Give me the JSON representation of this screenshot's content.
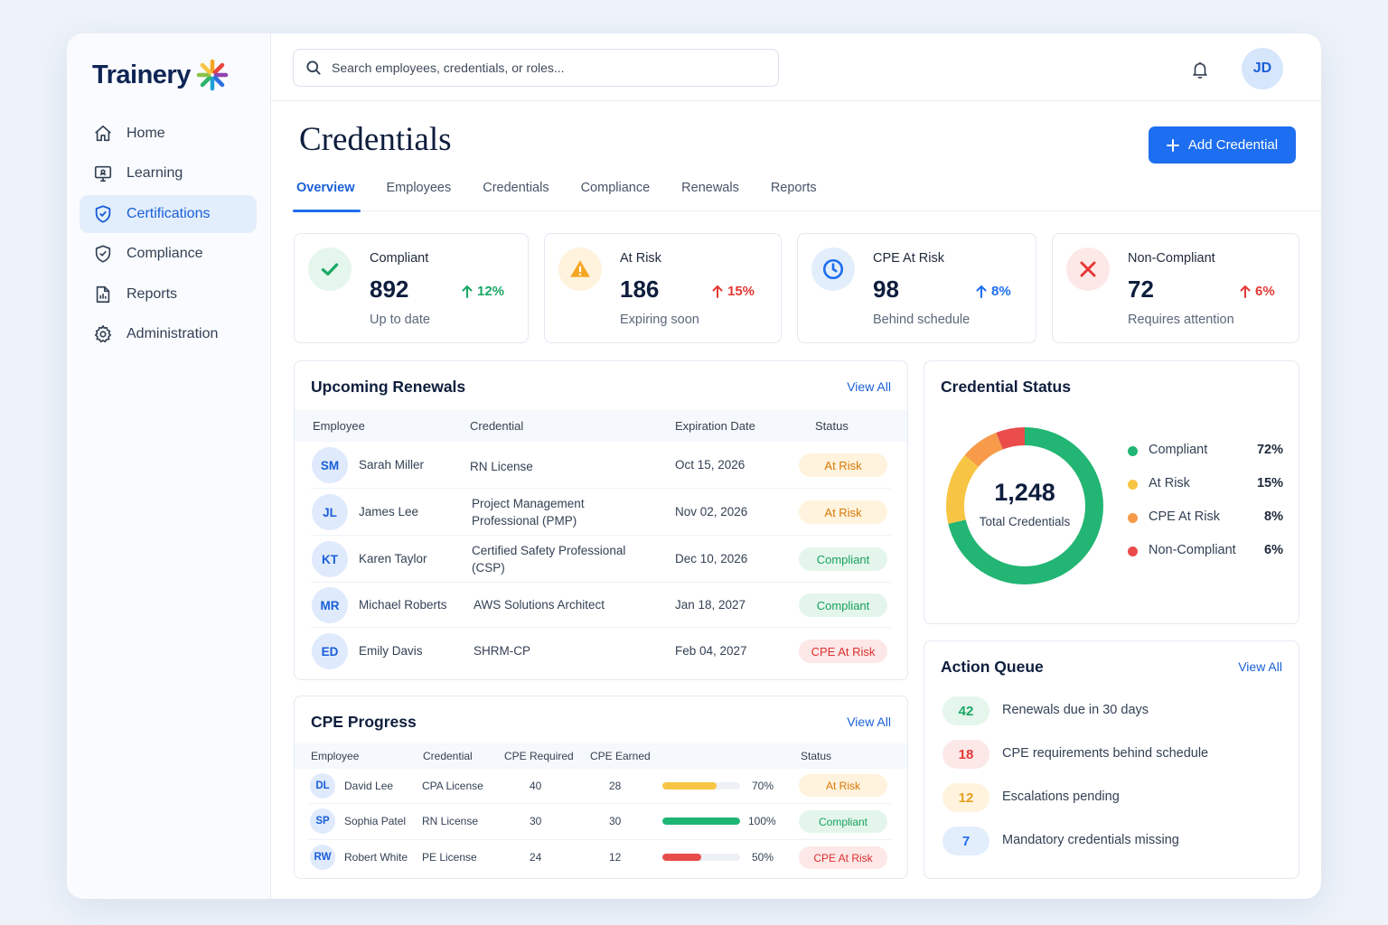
{
  "app": {
    "logo_text": "Trainery"
  },
  "sidebar": {
    "items": [
      {
        "label": "Home",
        "icon": "home-icon",
        "active": false
      },
      {
        "label": "Learning",
        "icon": "monitor-icon",
        "active": false
      },
      {
        "label": "Certifications",
        "icon": "shield-check-icon",
        "active": true
      },
      {
        "label": "Compliance",
        "icon": "shield-icon",
        "active": false
      },
      {
        "label": "Reports",
        "icon": "report-icon",
        "active": false
      },
      {
        "label": "Administration",
        "icon": "gear-icon",
        "active": false
      }
    ]
  },
  "topbar": {
    "search_placeholder": "Search employees, credentials, or roles...",
    "avatar_initials": "JD"
  },
  "header": {
    "title": "Credentials",
    "add_button": "Add Credential"
  },
  "tabs": [
    "Overview",
    "Employees",
    "Credentials",
    "Compliance",
    "Renewals",
    "Reports"
  ],
  "active_tab": "Overview",
  "kpis": [
    {
      "label": "Compliant",
      "value": "892",
      "trend": "12%",
      "sub": "Up to date",
      "color": "#1aa866",
      "bg": "#e5f6ec",
      "icon": "check-icon"
    },
    {
      "label": "At Risk",
      "value": "186",
      "trend": "15%",
      "sub": "Expiring soon",
      "color": "#f5a623",
      "bg": "#fff3de",
      "icon": "warning-icon"
    },
    {
      "label": "CPE At Risk",
      "value": "98",
      "trend": "8%",
      "sub": "Behind schedule",
      "color": "#1d6ef0",
      "bg": "#e3eefc",
      "icon": "clock-icon"
    },
    {
      "label": "Non-Compliant",
      "value": "72",
      "trend": "6%",
      "sub": "Requires attention",
      "color": "#e53935",
      "bg": "#fde8e8",
      "icon": "x-icon"
    }
  ],
  "renewals": {
    "title": "Upcoming Renewals",
    "view_all": "View All",
    "columns": [
      "Employee",
      "Credential",
      "Expiration Date",
      "Status"
    ],
    "rows": [
      {
        "initials": "SM",
        "name": "Sarah Miller",
        "credential": "RN License",
        "date": "Oct 15, 2026",
        "status": "At Risk",
        "status_type": "risk"
      },
      {
        "initials": "JL",
        "name": "James Lee",
        "credential": "Project Management Professional (PMP)",
        "date": "Nov 02, 2026",
        "status": "At Risk",
        "status_type": "risk"
      },
      {
        "initials": "KT",
        "name": "Karen Taylor",
        "credential": "Certified Safety Professional (CSP)",
        "date": "Dec 10, 2026",
        "status": "Compliant",
        "status_type": "ok"
      },
      {
        "initials": "MR",
        "name": "Michael Roberts",
        "credential": "AWS Solutions Architect",
        "date": "Jan 18, 2027",
        "status": "Compliant",
        "status_type": "ok"
      },
      {
        "initials": "ED",
        "name": "Emily Davis",
        "credential": "SHRM-CP",
        "date": "Feb 04, 2027",
        "status": "CPE At Risk",
        "status_type": "cpe"
      }
    ]
  },
  "cpe": {
    "title": "CPE Progress",
    "view_all": "View All",
    "columns": [
      "Employee",
      "Credential",
      "CPE Required",
      "CPE Earned",
      "Status"
    ],
    "rows": [
      {
        "initials": "DL",
        "name": "David Lee",
        "credential": "CPA License",
        "required": "40",
        "earned": "28",
        "progress": 70,
        "pct": "70%",
        "bar_color": "#f7c543",
        "status": "At Risk",
        "status_type": "risk"
      },
      {
        "initials": "SP",
        "name": "Sophia Patel",
        "credential": "RN License",
        "required": "30",
        "earned": "30",
        "progress": 100,
        "pct": "100%",
        "bar_color": "#1fb574",
        "status": "Compliant",
        "status_type": "ok"
      },
      {
        "initials": "RW",
        "name": "Robert White",
        "credential": "PE License",
        "required": "24",
        "earned": "12",
        "progress": 50,
        "pct": "50%",
        "bar_color": "#e84b4b",
        "status": "CPE At Risk",
        "status_type": "cpe"
      }
    ]
  },
  "status_chart": {
    "title": "Credential Status",
    "total": "1,248",
    "total_label": "Total Credentials",
    "segments": [
      {
        "label": "Compliant",
        "pct": "72%",
        "value": 72,
        "color": "#22b573"
      },
      {
        "label": "At Risk",
        "pct": "15%",
        "value": 15,
        "color": "#f7c543"
      },
      {
        "label": "CPE At Risk",
        "pct": "8%",
        "value": 8,
        "color": "#f79a4a"
      },
      {
        "label": "Non-Compliant",
        "pct": "6%",
        "value": 6,
        "color": "#ea4b4b"
      }
    ]
  },
  "action_queue": {
    "title": "Action Queue",
    "view_all": "View All",
    "items": [
      {
        "count": "42",
        "label": "Renewals due in 30 days",
        "color": "#1aa866",
        "bg": "#e5f6ec"
      },
      {
        "count": "18",
        "label": "CPE requirements behind schedule",
        "color": "#e53935",
        "bg": "#fde8e8"
      },
      {
        "count": "12",
        "label": "Escalations pending",
        "color": "#e8a020",
        "bg": "#fff3de"
      },
      {
        "count": "7",
        "label": "Mandatory credentials missing",
        "color": "#1d6ef0",
        "bg": "#e3eefc"
      }
    ]
  }
}
